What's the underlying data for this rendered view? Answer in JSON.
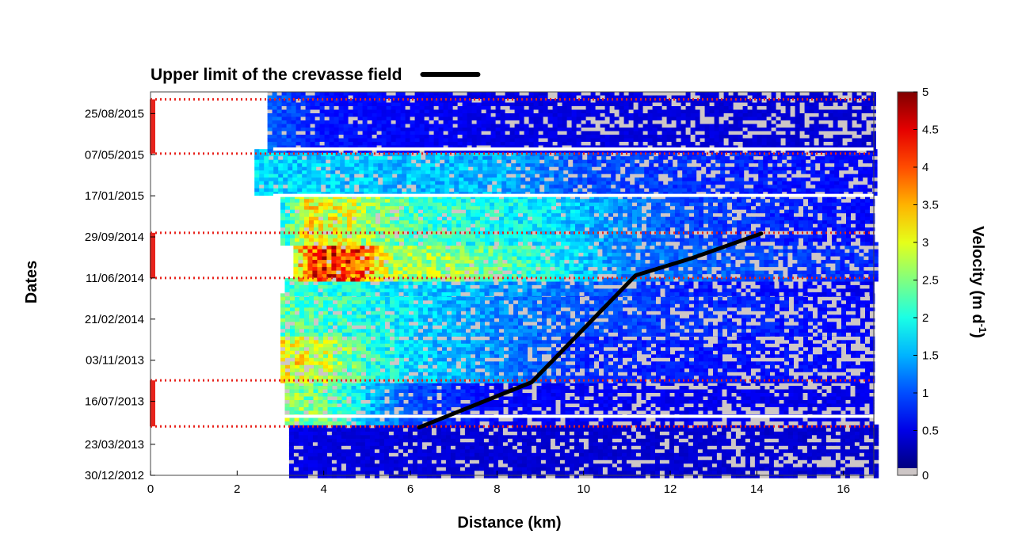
{
  "chart_data": {
    "type": "heatmap",
    "title": "",
    "xlabel": "Distance (km)",
    "ylabel": "Dates",
    "colorbar_label": "Velocity (m d",
    "colorbar_label_sup": "-1",
    "colorbar_label_end": ")",
    "xlim": [
      0,
      16.7
    ],
    "x_ticks": [
      0,
      2,
      4,
      6,
      8,
      10,
      12,
      14,
      16
    ],
    "x_tick_labels": [
      "0",
      "2",
      "4",
      "6",
      "8",
      "10",
      "12",
      "14",
      "16"
    ],
    "ylim": [
      "30/12/2012",
      "22/10/2015"
    ],
    "y_ticks": [
      "30/12/2012",
      "23/03/2013",
      "16/07/2013",
      "03/11/2013",
      "21/02/2014",
      "11/06/2014",
      "29/09/2014",
      "17/01/2015",
      "07/05/2015",
      "25/08/2015"
    ],
    "colorbar": {
      "min": 0,
      "max": 5,
      "ticks": [
        0,
        0.5,
        1,
        1.5,
        2,
        2.5,
        3,
        3.5,
        4,
        4.5,
        5
      ],
      "tick_labels": [
        "0",
        "0.5",
        "1",
        "1.5",
        "2",
        "2.5",
        "3",
        "3.5",
        "4",
        "4.5",
        "5"
      ],
      "no_data_color": "#cdc6c6",
      "colormap": "jet"
    },
    "legend": {
      "entries": [
        {
          "name": "Upper limit of the crevasse field",
          "color": "#000000"
        }
      ],
      "placement": "top-left"
    },
    "crevasse_line": {
      "name": "Upper limit of the crevasse field",
      "color": "#000000",
      "points": [
        {
          "x": 6.2,
          "date": "07/05/2013"
        },
        {
          "x": 8.8,
          "date": "05/09/2013"
        },
        {
          "x": 11.2,
          "date": "18/06/2014"
        },
        {
          "x": 12.5,
          "date": "03/08/2014"
        },
        {
          "x": 14.1,
          "date": "08/10/2014"
        }
      ]
    },
    "summer_periods": {
      "color": "#e8231c",
      "periods": [
        {
          "start": "10/05/2013",
          "end": "10/09/2013"
        },
        {
          "start": "11/06/2014",
          "end": "10/10/2014"
        },
        {
          "start": "10/05/2015",
          "end": "02/10/2015"
        }
      ]
    },
    "data_gaps": [
      "06/06/2013",
      "18/01/2015",
      "22/05/2015"
    ],
    "velocity_field": [
      {
        "start": "30/12/2012",
        "end": "15/05/2013",
        "x_start": 3.2,
        "profile": [
          {
            "x": 3.2,
            "v": 0.5
          },
          {
            "x": 5,
            "v": 0.45
          },
          {
            "x": 10,
            "v": 0.4
          },
          {
            "x": 16.7,
            "v": 0.4
          }
        ],
        "coverage": 0.6
      },
      {
        "start": "15/05/2013",
        "end": "05/09/2013",
        "x_start": 3.1,
        "profile": [
          {
            "x": 3.1,
            "v": 2.6
          },
          {
            "x": 4,
            "v": 2.4
          },
          {
            "x": 5,
            "v": 1.6
          },
          {
            "x": 6,
            "v": 1.0
          },
          {
            "x": 8,
            "v": 0.6
          },
          {
            "x": 16.7,
            "v": 0.5
          }
        ],
        "coverage": 0.45
      },
      {
        "start": "05/09/2013",
        "end": "15/01/2014",
        "x_start": 3.0,
        "profile": [
          {
            "x": 3.0,
            "v": 3.2
          },
          {
            "x": 4,
            "v": 2.8
          },
          {
            "x": 5,
            "v": 2.1
          },
          {
            "x": 6,
            "v": 1.7
          },
          {
            "x": 8,
            "v": 1.3
          },
          {
            "x": 10,
            "v": 0.8
          },
          {
            "x": 16.7,
            "v": 0.6
          }
        ],
        "coverage": 0.5
      },
      {
        "start": "15/01/2014",
        "end": "01/05/2014",
        "x_start": 3.0,
        "profile": [
          {
            "x": 3.0,
            "v": 2.3
          },
          {
            "x": 5,
            "v": 2.0
          },
          {
            "x": 7,
            "v": 1.5
          },
          {
            "x": 10,
            "v": 1.0
          },
          {
            "x": 16.7,
            "v": 0.6
          }
        ],
        "coverage": 0.5
      },
      {
        "start": "01/05/2014",
        "end": "11/06/2014",
        "x_start": 3.1,
        "profile": [
          {
            "x": 3.1,
            "v": 2.2
          },
          {
            "x": 5,
            "v": 1.9
          },
          {
            "x": 8,
            "v": 1.4
          },
          {
            "x": 12,
            "v": 0.8
          },
          {
            "x": 16.7,
            "v": 0.5
          }
        ],
        "coverage": 0.5
      },
      {
        "start": "11/06/2014",
        "end": "15/09/2014",
        "x_start": 3.3,
        "profile": [
          {
            "x": 3.3,
            "v": 3.0
          },
          {
            "x": 3.8,
            "v": 4.2
          },
          {
            "x": 4.8,
            "v": 4.0
          },
          {
            "x": 5.5,
            "v": 2.7
          },
          {
            "x": 7,
            "v": 2.6
          },
          {
            "x": 9,
            "v": 2.0
          },
          {
            "x": 11,
            "v": 1.2
          },
          {
            "x": 16.7,
            "v": 0.8
          }
        ],
        "coverage": 0.6
      },
      {
        "start": "15/09/2014",
        "end": "18/01/2015",
        "x_start": 3.0,
        "profile": [
          {
            "x": 3.0,
            "v": 2.0
          },
          {
            "x": 3.6,
            "v": 3.1
          },
          {
            "x": 4.5,
            "v": 2.9
          },
          {
            "x": 6,
            "v": 2.2
          },
          {
            "x": 9,
            "v": 1.8
          },
          {
            "x": 12,
            "v": 1.0
          },
          {
            "x": 16.7,
            "v": 0.6
          }
        ],
        "coverage": 0.65
      },
      {
        "start": "18/01/2015",
        "end": "22/05/2015",
        "x_start": 2.4,
        "profile": [
          {
            "x": 2.4,
            "v": 1.7
          },
          {
            "x": 5,
            "v": 1.6
          },
          {
            "x": 8,
            "v": 1.5
          },
          {
            "x": 10,
            "v": 1.0
          },
          {
            "x": 16.7,
            "v": 0.6
          }
        ],
        "coverage": 0.75
      },
      {
        "start": "22/05/2015",
        "end": "22/10/2015",
        "x_start": 2.7,
        "profile": [
          {
            "x": 2.7,
            "v": 1.1
          },
          {
            "x": 4,
            "v": 0.7
          },
          {
            "x": 8,
            "v": 0.5
          },
          {
            "x": 16.7,
            "v": 0.4
          }
        ],
        "coverage": 0.5
      }
    ]
  }
}
